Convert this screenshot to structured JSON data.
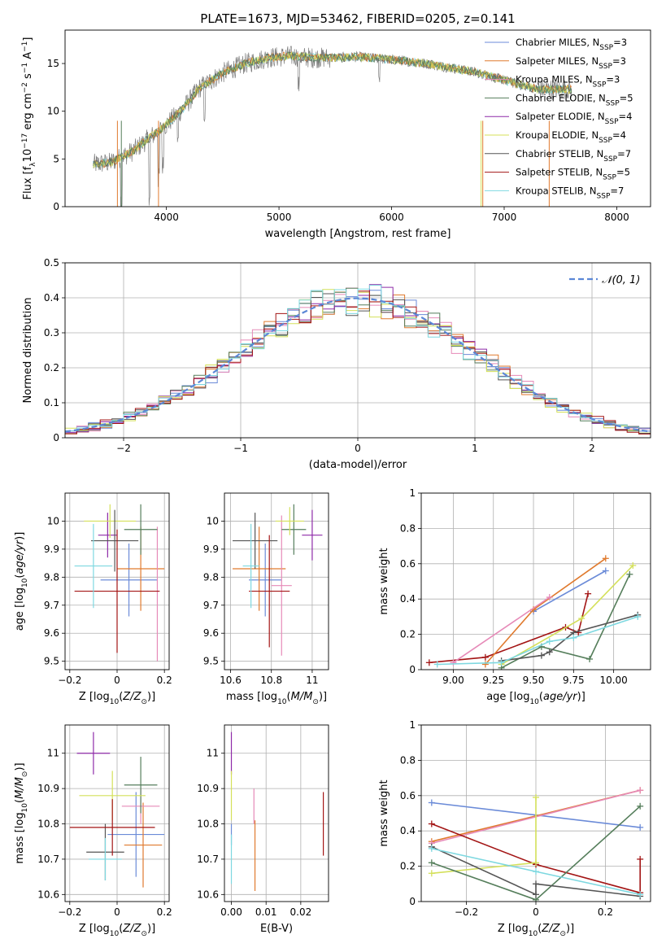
{
  "figure_title": "PLATE=1673, MJD=53462, FIBERID=0205, z=0.141",
  "colors": {
    "Chabrier MILES": "#6b8bd8",
    "Salpeter MILES": "#e07a2e",
    "Kroupa MILES": "#e68ab8",
    "Chabrier ELODIE": "#557e5b",
    "Salpeter ELODIE": "#8e2aa8",
    "Kroupa ELODIE": "#d4e05a",
    "Chabrier STELIB": "#555555",
    "Salpeter STELIB": "#a31515",
    "Kroupa STELIB": "#7ed8e0"
  },
  "legend_spectrum": [
    "Chabrier MILES, N_SSP=3",
    "Salpeter MILES, N_SSP=3",
    "Kroupa MILES, N_SSP=3",
    "Chabrier ELODIE, N_SSP=5",
    "Salpeter ELODIE, N_SSP=4",
    "Kroupa ELODIE, N_SSP=4",
    "Chabrier STELIB, N_SSP=7",
    "Salpeter STELIB, N_SSP=5",
    "Kroupa STELIB, N_SSP=7"
  ],
  "chart_data": [
    {
      "id": "spectrum",
      "type": "line",
      "xlabel": "wavelength [Angstrom, rest frame]",
      "ylabel": "Flux [f_λ 10^-17 erg cm^-2 s^-1 A^-1]",
      "xlim": [
        3100,
        8300
      ],
      "ylim": [
        0,
        18.5
      ],
      "xticks": [
        4000,
        5000,
        6000,
        7000,
        8000
      ],
      "yticks": [
        0,
        5,
        10,
        15
      ],
      "grid": false,
      "legend_position": "upper right",
      "continuum": {
        "x": [
          3300,
          3500,
          3700,
          3850,
          4000,
          4150,
          4300,
          4500,
          4700,
          4900,
          5100,
          5300,
          5500,
          5700,
          5900,
          6100,
          6300,
          6500,
          6700,
          6900,
          7100,
          7300
        ],
        "y": [
          4.4,
          4.6,
          5.8,
          7.2,
          8.6,
          10.3,
          12.5,
          14.0,
          15.0,
          15.6,
          15.8,
          15.6,
          15.6,
          15.7,
          15.5,
          15.3,
          15.0,
          14.6,
          14.2,
          13.6,
          12.9,
          12.3
        ]
      }
    },
    {
      "id": "residuals",
      "type": "histogram",
      "xlabel": "(data-model)/error",
      "ylabel": "Normed distribution",
      "xlim": [
        -2.5,
        2.5
      ],
      "ylim": [
        0,
        0.5
      ],
      "xticks": [
        -2,
        -1,
        0,
        1,
        2
      ],
      "yticks": [
        0.0,
        0.1,
        0.2,
        0.3,
        0.4,
        0.5
      ],
      "grid": true,
      "legend": "N(0,1)",
      "legend_position": "upper right",
      "bin_width": 0.1,
      "bin_start": -2.5
    },
    {
      "id": "age_vs_Z",
      "type": "errorbar",
      "xlabel": "Z [log10(Z/Z_sun)]",
      "ylabel": "age [log10(age/yr)]",
      "xlim": [
        -0.22,
        0.22
      ],
      "ylim": [
        9.47,
        10.1
      ],
      "xticks": [
        -0.2,
        0.0,
        0.2
      ],
      "yticks": [
        9.5,
        9.6,
        9.7,
        9.8,
        9.9,
        10.0
      ],
      "grid": true,
      "points": [
        {
          "model": "Chabrier MILES",
          "x": 0.05,
          "xerr": 0.12,
          "y": 9.79,
          "yerr": 0.13
        },
        {
          "model": "Salpeter MILES",
          "x": 0.1,
          "xerr": 0.1,
          "y": 9.83,
          "yerr": 0.15
        },
        {
          "model": "Kroupa MILES",
          "x": 0.17,
          "xerr": 0.0,
          "y": 9.74,
          "yerr": 0.24
        },
        {
          "model": "Chabrier ELODIE",
          "x": 0.1,
          "xerr": 0.07,
          "y": 9.97,
          "yerr": 0.09
        },
        {
          "model": "Salpeter ELODIE",
          "x": -0.04,
          "xerr": 0.04,
          "y": 9.95,
          "yerr": 0.08
        },
        {
          "model": "Kroupa ELODIE",
          "x": -0.03,
          "xerr": 0.11,
          "y": 10.0,
          "yerr": 0.06
        },
        {
          "model": "Chabrier STELIB",
          "x": -0.01,
          "xerr": 0.1,
          "y": 9.93,
          "yerr": 0.11
        },
        {
          "model": "Salpeter STELIB",
          "x": 0.0,
          "xerr": 0.18,
          "y": 9.75,
          "yerr": 0.22
        },
        {
          "model": "Kroupa STELIB",
          "x": -0.1,
          "xerr": 0.08,
          "y": 9.84,
          "yerr": 0.15
        }
      ]
    },
    {
      "id": "age_vs_mass",
      "type": "errorbar",
      "xlabel": "mass [log10(M/M_sun)]",
      "xlim": [
        10.57,
        11.08
      ],
      "ylim": [
        9.47,
        10.1
      ],
      "xticks": [
        10.6,
        10.8,
        11.0
      ],
      "yticks": [
        9.5,
        9.6,
        9.7,
        9.8,
        9.9,
        10.0
      ],
      "grid": true,
      "points": [
        {
          "model": "Chabrier MILES",
          "x": 10.77,
          "xerr": 0.08,
          "y": 9.79,
          "yerr": 0.13
        },
        {
          "model": "Salpeter MILES",
          "x": 10.74,
          "xerr": 0.13,
          "y": 9.83,
          "yerr": 0.15
        },
        {
          "model": "Kroupa MILES",
          "x": 10.85,
          "xerr": 0.05,
          "y": 9.77,
          "yerr": 0.25
        },
        {
          "model": "Chabrier ELODIE",
          "x": 10.91,
          "xerr": 0.06,
          "y": 9.97,
          "yerr": 0.09
        },
        {
          "model": "Salpeter ELODIE",
          "x": 11.0,
          "xerr": 0.05,
          "y": 9.95,
          "yerr": 0.09
        },
        {
          "model": "Kroupa ELODIE",
          "x": 10.89,
          "xerr": 0.07,
          "y": 10.0,
          "yerr": 0.05
        },
        {
          "model": "Chabrier STELIB",
          "x": 10.72,
          "xerr": 0.11,
          "y": 9.93,
          "yerr": 0.1
        },
        {
          "model": "Salpeter STELIB",
          "x": 10.79,
          "xerr": 0.1,
          "y": 9.75,
          "yerr": 0.2
        },
        {
          "model": "Kroupa STELIB",
          "x": 10.7,
          "xerr": 0.04,
          "y": 9.84,
          "yerr": 0.15
        }
      ]
    },
    {
      "id": "weight_vs_age",
      "type": "line",
      "xlabel": "age [log10(age/yr)]",
      "ylabel": "mass weight",
      "xlim": [
        8.8,
        10.23
      ],
      "ylim": [
        0.0,
        1.0
      ],
      "xticks": [
        9.0,
        9.25,
        9.5,
        9.75,
        10.0
      ],
      "xticklabels": [
        "9.00",
        "9.25",
        "9.50",
        "9.75",
        "10.00"
      ],
      "yticks": [
        0.0,
        0.2,
        0.4,
        0.6,
        0.8,
        1.0
      ],
      "grid": true,
      "series": [
        {
          "model": "Salpeter STELIB",
          "x": [
            8.85,
            9.2,
            9.7,
            9.78,
            9.84
          ],
          "y": [
            0.04,
            0.07,
            0.24,
            0.21,
            0.43
          ]
        },
        {
          "model": "Chabrier MILES",
          "x": [
            9.5,
            9.95
          ],
          "y": [
            0.33,
            0.56
          ]
        },
        {
          "model": "Salpeter MILES",
          "x": [
            9.2,
            9.5,
            9.95
          ],
          "y": [
            0.03,
            0.34,
            0.63
          ]
        },
        {
          "model": "Kroupa MILES",
          "x": [
            9.0,
            9.6
          ],
          "y": [
            0.04,
            0.41
          ]
        },
        {
          "model": "Kroupa ELODIE",
          "x": [
            9.3,
            9.8,
            10.12
          ],
          "y": [
            0.03,
            0.29,
            0.59
          ]
        },
        {
          "model": "Chabrier ELODIE",
          "x": [
            9.3,
            9.55,
            9.85,
            10.1
          ],
          "y": [
            0.01,
            0.13,
            0.06,
            0.54
          ]
        },
        {
          "model": "Chabrier STELIB",
          "x": [
            9.3,
            9.55,
            9.6,
            9.75,
            10.15
          ],
          "y": [
            0.05,
            0.08,
            0.1,
            0.21,
            0.31
          ]
        },
        {
          "model": "Kroupa STELIB",
          "x": [
            8.9,
            9.3,
            9.6,
            9.75,
            10.15
          ],
          "y": [
            0.03,
            0.04,
            0.16,
            0.18,
            0.3
          ]
        }
      ]
    },
    {
      "id": "mass_vs_Z",
      "type": "errorbar",
      "xlabel": "Z [log10(Z/Z_sun)]",
      "ylabel": "mass [log10(M/M_sun)]",
      "xlim": [
        -0.22,
        0.22
      ],
      "ylim": [
        10.58,
        11.08
      ],
      "xticks": [
        -0.2,
        0.0,
        0.2
      ],
      "yticks": [
        10.6,
        10.7,
        10.8,
        10.9,
        11.0
      ],
      "grid": true,
      "points": [
        {
          "model": "Chabrier MILES",
          "x": 0.08,
          "xerr": 0.12,
          "y": 10.77,
          "yerr": 0.12
        },
        {
          "model": "Salpeter MILES",
          "x": 0.11,
          "xerr": 0.08,
          "y": 10.74,
          "yerr": 0.12
        },
        {
          "model": "Kroupa MILES",
          "x": 0.1,
          "xerr": 0.08,
          "y": 10.85,
          "yerr": 0.05
        },
        {
          "model": "Chabrier ELODIE",
          "x": 0.1,
          "xerr": 0.07,
          "y": 10.91,
          "yerr": 0.08
        },
        {
          "model": "Salpeter ELODIE",
          "x": -0.1,
          "xerr": 0.07,
          "y": 11.0,
          "yerr": 0.06
        },
        {
          "model": "Kroupa ELODIE",
          "x": -0.02,
          "xerr": 0.14,
          "y": 10.88,
          "yerr": 0.07
        },
        {
          "model": "Chabrier STELIB",
          "x": -0.05,
          "xerr": 0.08,
          "y": 10.72,
          "yerr": 0.08
        },
        {
          "model": "Salpeter STELIB",
          "x": -0.02,
          "xerr": 0.18,
          "y": 10.79,
          "yerr": 0.08
        },
        {
          "model": "Kroupa STELIB",
          "x": -0.05,
          "xerr": 0.07,
          "y": 10.7,
          "yerr": 0.06
        }
      ]
    },
    {
      "id": "mass_vs_EBV",
      "type": "errorbar",
      "xlabel": "E(B-V)",
      "xlim": [
        -0.002,
        0.028
      ],
      "ylim": [
        10.58,
        11.08
      ],
      "xticks": [
        0.0,
        0.01,
        0.02
      ],
      "xticklabels": [
        "0.00",
        "0.01",
        "0.02"
      ],
      "yticks": [
        10.6,
        10.7,
        10.8,
        10.9,
        11.0
      ],
      "grid": true,
      "points": [
        {
          "model": "Salpeter ELODIE",
          "x": 0.0,
          "y": 11.0,
          "yerr": 0.06
        },
        {
          "model": "Kroupa ELODIE",
          "x": 0.0,
          "y": 10.88,
          "yerr": 0.07
        },
        {
          "model": "Chabrier MILES",
          "x": 0.0,
          "y": 10.77,
          "yerr": 0.03
        },
        {
          "model": "Kroupa STELIB",
          "x": 0.0,
          "y": 10.7,
          "yerr": 0.07
        },
        {
          "model": "Kroupa MILES",
          "x": 0.0065,
          "y": 10.85,
          "yerr": 0.05
        },
        {
          "model": "Salpeter MILES",
          "x": 0.0068,
          "y": 10.71,
          "yerr": 0.1
        },
        {
          "model": "Salpeter STELIB",
          "x": 0.0265,
          "y": 10.8,
          "yerr": 0.09
        }
      ]
    },
    {
      "id": "weight_vs_Z",
      "type": "line",
      "xlabel": "Z [log10(Z/Z_sun)]",
      "ylabel": "mass weight",
      "xlim": [
        -0.33,
        0.33
      ],
      "ylim": [
        0.0,
        1.0
      ],
      "xticks": [
        -0.2,
        0.0,
        0.2
      ],
      "yticks": [
        0.0,
        0.2,
        0.4,
        0.6,
        0.8,
        1.0
      ],
      "grid": true,
      "series": [
        {
          "model": "Chabrier MILES",
          "x": [
            -0.3,
            0.3
          ],
          "y": [
            0.56,
            0.42
          ]
        },
        {
          "model": "Salpeter MILES",
          "x": [
            -0.3,
            0.3
          ],
          "y": [
            0.34,
            0.63
          ]
        },
        {
          "model": "Kroupa MILES",
          "x": [
            -0.3,
            0.3
          ],
          "y": [
            0.33,
            0.63
          ]
        },
        {
          "model": "Salpeter STELIB",
          "x": [
            -0.3,
            0.0,
            0.3,
            0.3
          ],
          "y": [
            0.44,
            0.21,
            0.05,
            0.24
          ]
        },
        {
          "model": "Kroupa ELODIE",
          "x": [
            -0.3,
            0.0,
            0.0
          ],
          "y": [
            0.16,
            0.22,
            0.59
          ]
        },
        {
          "model": "Chabrier ELODIE",
          "x": [
            -0.3,
            0.0,
            0.3
          ],
          "y": [
            0.22,
            0.01,
            0.54
          ]
        },
        {
          "model": "Chabrier STELIB",
          "x": [
            -0.3,
            0.0,
            0.0,
            0.3
          ],
          "y": [
            0.31,
            0.04,
            0.1,
            0.03
          ]
        },
        {
          "model": "Kroupa STELIB",
          "x": [
            -0.3,
            0.0,
            0.3
          ],
          "y": [
            0.3,
            0.17,
            0.04
          ]
        }
      ]
    }
  ]
}
